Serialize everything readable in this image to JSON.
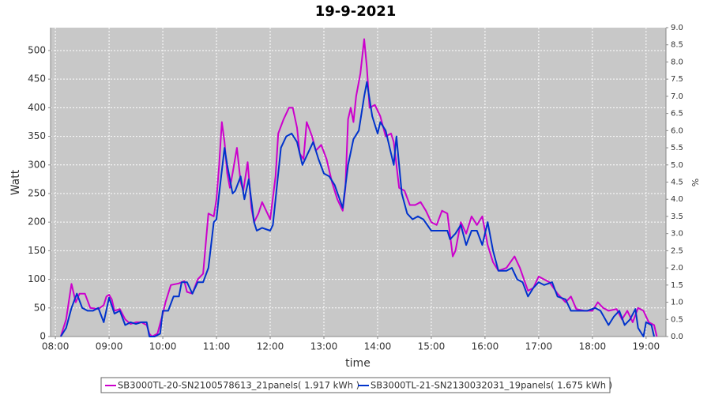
{
  "chart_data": {
    "type": "line",
    "title": "19-9-2021",
    "xlabel": "time",
    "ylabel": "Watt",
    "y2label": "%",
    "xlim": [
      7.91,
      19.37
    ],
    "ylim": [
      0,
      540
    ],
    "y2lim": [
      0,
      9
    ],
    "xticks": [
      {
        "value": 8,
        "label": "08:00"
      },
      {
        "value": 9,
        "label": "09:00"
      },
      {
        "value": 10,
        "label": "10:00"
      },
      {
        "value": 11,
        "label": "11:00"
      },
      {
        "value": 12,
        "label": "12:00"
      },
      {
        "value": 13,
        "label": "13:00"
      },
      {
        "value": 14,
        "label": "14:00"
      },
      {
        "value": 15,
        "label": "15:00"
      },
      {
        "value": 16,
        "label": "16:00"
      },
      {
        "value": 17,
        "label": "17:00"
      },
      {
        "value": 18,
        "label": "18:00"
      },
      {
        "value": 19,
        "label": "19:00"
      }
    ],
    "yticks": [
      0,
      50,
      100,
      150,
      200,
      250,
      300,
      350,
      400,
      450,
      500
    ],
    "y2ticks": [
      {
        "value": 0,
        "label": "0.0"
      },
      0.5,
      {
        "value": 1,
        "label": "1.0"
      },
      1.5,
      {
        "value": 2,
        "label": "2.0"
      },
      2.5,
      {
        "value": 3,
        "label": "3.0"
      },
      3.5,
      {
        "value": 4,
        "label": "4.0"
      },
      4.5,
      {
        "value": 5,
        "label": "5.0"
      },
      5.5,
      {
        "value": 6,
        "label": "6.0"
      },
      6.5,
      {
        "value": 7,
        "label": "7.0"
      },
      7.5,
      {
        "value": 8,
        "label": "8.0"
      },
      8.5,
      {
        "value": 9,
        "label": "9.0"
      }
    ],
    "grid": true,
    "series": [
      {
        "name": "SB3000TL-20-SN2100578613_21panels( 1.917 kWh )",
        "color": "#cc00cc",
        "x": [
          8.1,
          8.2,
          8.3,
          8.38,
          8.45,
          8.55,
          8.65,
          8.8,
          8.9,
          8.95,
          9.0,
          9.05,
          9.1,
          9.2,
          9.3,
          9.4,
          9.5,
          9.6,
          9.7,
          9.75,
          9.8,
          9.9,
          10.0,
          10.05,
          10.15,
          10.3,
          10.4,
          10.45,
          10.55,
          10.65,
          10.75,
          10.85,
          10.95,
          11.0,
          11.05,
          11.1,
          11.15,
          11.2,
          11.25,
          11.3,
          11.38,
          11.45,
          11.5,
          11.58,
          11.65,
          11.7,
          11.78,
          11.85,
          11.95,
          12.0,
          12.1,
          12.15,
          12.25,
          12.35,
          12.42,
          12.5,
          12.55,
          12.62,
          12.68,
          12.72,
          12.78,
          12.85,
          12.95,
          13.05,
          13.15,
          13.25,
          13.35,
          13.4,
          13.45,
          13.5,
          13.55,
          13.6,
          13.68,
          13.75,
          13.8,
          13.85,
          13.95,
          14.05,
          14.15,
          14.25,
          14.3,
          14.4,
          14.5,
          14.6,
          14.7,
          14.8,
          14.9,
          15.0,
          15.1,
          15.2,
          15.3,
          15.4,
          15.45,
          15.55,
          15.65,
          15.75,
          15.85,
          15.95,
          16.05,
          16.15,
          16.25,
          16.4,
          16.55,
          16.65,
          16.8,
          16.9,
          17.0,
          17.1,
          17.2,
          17.35,
          17.5,
          17.6,
          17.7,
          17.85,
          18.0,
          18.1,
          18.2,
          18.3,
          18.45,
          18.55,
          18.65,
          18.75,
          18.85,
          18.95,
          19.05,
          19.15,
          19.2
        ],
        "values": [
          0,
          30,
          92,
          60,
          75,
          75,
          50,
          48,
          55,
          70,
          73,
          65,
          45,
          48,
          30,
          22,
          25,
          25,
          20,
          5,
          0,
          5,
          40,
          60,
          90,
          93,
          97,
          78,
          75,
          100,
          110,
          215,
          210,
          240,
          300,
          375,
          340,
          285,
          260,
          285,
          330,
          270,
          255,
          305,
          225,
          200,
          215,
          235,
          215,
          205,
          280,
          355,
          380,
          400,
          400,
          365,
          320,
          310,
          375,
          365,
          350,
          325,
          335,
          310,
          270,
          240,
          220,
          260,
          380,
          400,
          375,
          420,
          460,
          520,
          470,
          400,
          405,
          385,
          350,
          355,
          340,
          260,
          255,
          230,
          230,
          235,
          220,
          200,
          195,
          220,
          215,
          140,
          150,
          200,
          180,
          210,
          195,
          210,
          160,
          130,
          115,
          120,
          140,
          120,
          80,
          85,
          105,
          100,
          95,
          75,
          60,
          70,
          48,
          45,
          45,
          60,
          50,
          45,
          48,
          30,
          45,
          25,
          50,
          45,
          25,
          20,
          0
        ]
      },
      {
        "name": "SB3000TL-21-SN2130032031_19panels( 1.675 kWh )",
        "color": "#0033cc",
        "x": [
          8.1,
          8.2,
          8.3,
          8.4,
          8.5,
          8.6,
          8.7,
          8.8,
          8.9,
          9.0,
          9.1,
          9.2,
          9.3,
          9.4,
          9.5,
          9.6,
          9.7,
          9.75,
          9.85,
          9.95,
          10.0,
          10.1,
          10.2,
          10.3,
          10.35,
          10.45,
          10.55,
          10.65,
          10.75,
          10.85,
          10.95,
          11.0,
          11.05,
          11.15,
          11.2,
          11.3,
          11.35,
          11.45,
          11.52,
          11.6,
          11.7,
          11.75,
          11.85,
          12.0,
          12.05,
          12.1,
          12.2,
          12.3,
          12.4,
          12.5,
          12.6,
          12.7,
          12.8,
          12.9,
          13.0,
          13.1,
          13.2,
          13.35,
          13.45,
          13.55,
          13.65,
          13.75,
          13.8,
          13.9,
          14.0,
          14.05,
          14.15,
          14.25,
          14.3,
          14.35,
          14.45,
          14.55,
          14.65,
          14.75,
          14.85,
          15.0,
          15.1,
          15.3,
          15.35,
          15.45,
          15.55,
          15.65,
          15.75,
          15.85,
          15.95,
          16.05,
          16.15,
          16.25,
          16.4,
          16.5,
          16.6,
          16.7,
          16.8,
          16.9,
          17.0,
          17.1,
          17.25,
          17.35,
          17.5,
          17.6,
          17.75,
          17.9,
          18.05,
          18.15,
          18.3,
          18.4,
          18.5,
          18.6,
          18.7,
          18.8,
          18.85,
          18.95,
          19.0,
          19.1,
          19.15
        ],
        "values": [
          0,
          15,
          50,
          75,
          50,
          45,
          45,
          50,
          25,
          68,
          40,
          45,
          20,
          25,
          22,
          25,
          25,
          0,
          0,
          5,
          45,
          45,
          70,
          70,
          95,
          95,
          75,
          95,
          95,
          120,
          200,
          205,
          250,
          330,
          300,
          250,
          255,
          280,
          240,
          275,
          200,
          185,
          190,
          185,
          195,
          240,
          330,
          350,
          355,
          340,
          300,
          320,
          340,
          310,
          285,
          280,
          265,
          225,
          300,
          345,
          360,
          420,
          445,
          385,
          355,
          375,
          360,
          320,
          300,
          350,
          250,
          215,
          205,
          210,
          205,
          185,
          185,
          185,
          170,
          180,
          195,
          160,
          185,
          185,
          160,
          200,
          150,
          115,
          115,
          120,
          100,
          95,
          70,
          85,
          95,
          90,
          95,
          70,
          65,
          45,
          45,
          45,
          50,
          45,
          20,
          35,
          45,
          20,
          30,
          48,
          15,
          0,
          25,
          20,
          0
        ]
      }
    ]
  }
}
